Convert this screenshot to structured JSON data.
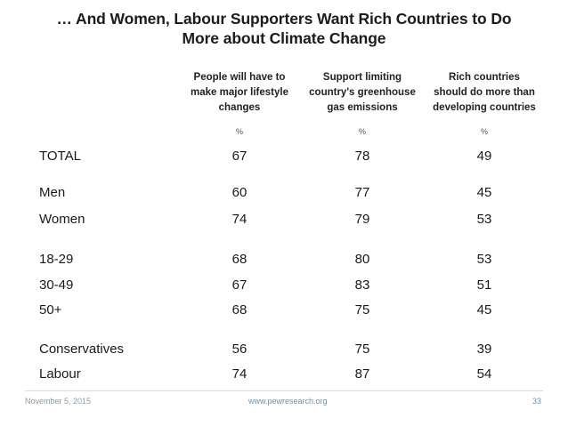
{
  "title": {
    "line1": "… And Women, Labour Supporters Want Rich Countries to Do",
    "line2": "More about Climate Change"
  },
  "columns": [
    {
      "lines": [
        "People will have to",
        "make major lifestyle",
        "changes"
      ],
      "unit": "%"
    },
    {
      "lines": [
        "Support limiting",
        "country's greenhouse",
        "gas emissions"
      ],
      "unit": "%"
    },
    {
      "lines": [
        "Rich countries",
        "should do more than",
        "developing countries"
      ],
      "unit": "%"
    }
  ],
  "rows": [
    {
      "label": "TOTAL",
      "values": [
        "67",
        "78",
        "49"
      ]
    },
    {
      "label": "Men",
      "values": [
        "60",
        "77",
        "45"
      ]
    },
    {
      "label": "Women",
      "values": [
        "74",
        "79",
        "53"
      ]
    },
    {
      "label": "18-29",
      "values": [
        "68",
        "80",
        "53"
      ]
    },
    {
      "label": "30-49",
      "values": [
        "67",
        "83",
        "51"
      ]
    },
    {
      "label": "50+",
      "values": [
        "68",
        "75",
        "45"
      ]
    },
    {
      "label": "Conservatives",
      "values": [
        "56",
        "75",
        "39"
      ]
    },
    {
      "label": "Labour",
      "values": [
        "74",
        "87",
        "54"
      ]
    }
  ],
  "footer": {
    "date": "November 5, 2015",
    "url": "www.pewresearch.org",
    "page": "33"
  }
}
